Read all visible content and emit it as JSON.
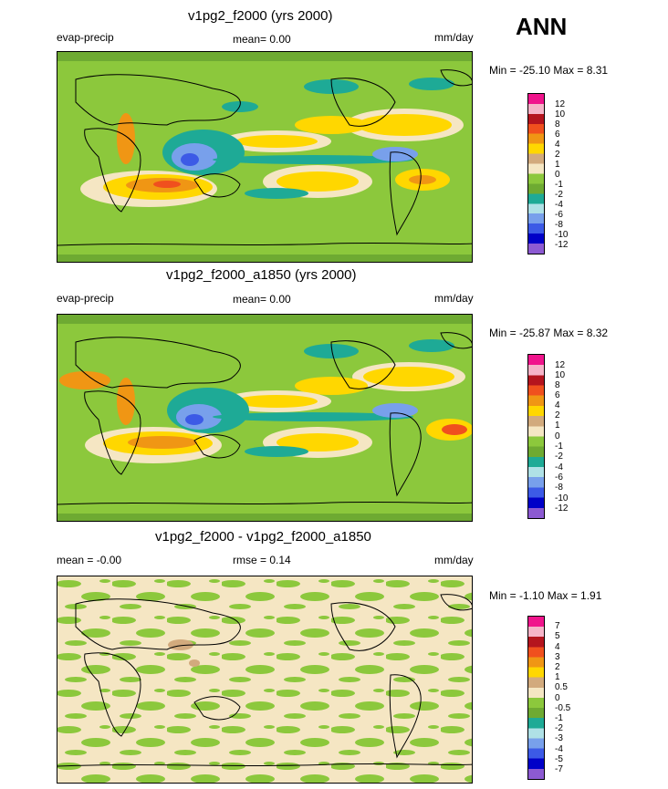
{
  "header": {
    "season": "ANN"
  },
  "panels": [
    {
      "title": "v1pg2_f2000 (yrs 2000)",
      "left_label": "evap-precip",
      "mid_label": "mean=  0.00",
      "units": "mm/day",
      "range": "Min = -25.10 Max =   8.31",
      "colorbar": {
        "ticks": [
          "12",
          "10",
          "8",
          "6",
          "4",
          "2",
          "1",
          "0",
          "-1",
          "-2",
          "-4",
          "-6",
          "-8",
          "-10",
          "-12"
        ],
        "colors": [
          "#f0148c",
          "#f5b4c8",
          "#b4141e",
          "#f0501e",
          "#f09614",
          "#ffd700",
          "#d2aa7d",
          "#f5e6c3",
          "#8cc83c",
          "#6eaa32",
          "#1eaa96",
          "#afe1e6",
          "#78a0eb",
          "#3c5ae6",
          "#0000c8",
          "#8c5ad2"
        ]
      }
    },
    {
      "title": "v1pg2_f2000_a1850 (yrs 2000)",
      "left_label": "evap-precip",
      "mid_label": "mean=  0.00",
      "units": "mm/day",
      "range": "Min = -25.87 Max =   8.32",
      "colorbar": {
        "ticks": [
          "12",
          "10",
          "8",
          "6",
          "4",
          "2",
          "1",
          "0",
          "-1",
          "-2",
          "-4",
          "-6",
          "-8",
          "-10",
          "-12"
        ],
        "colors": [
          "#f0148c",
          "#f5b4c8",
          "#b4141e",
          "#f0501e",
          "#f09614",
          "#ffd700",
          "#d2aa7d",
          "#f5e6c3",
          "#8cc83c",
          "#6eaa32",
          "#1eaa96",
          "#afe1e6",
          "#78a0eb",
          "#3c5ae6",
          "#0000c8",
          "#8c5ad2"
        ]
      }
    },
    {
      "title": "v1pg2_f2000 - v1pg2_f2000_a1850",
      "left_label": "mean =  -0.00",
      "mid_label": "rmse =  0.14",
      "units": "mm/day",
      "range": "Min =  -1.10 Max =   1.91",
      "colorbar": {
        "ticks": [
          "7",
          "5",
          "4",
          "3",
          "2",
          "1",
          "0.5",
          "0",
          "-0.5",
          "-1",
          "-2",
          "-3",
          "-4",
          "-5",
          "-7"
        ],
        "colors": [
          "#f0148c",
          "#f5b4c8",
          "#b4141e",
          "#f0501e",
          "#f09614",
          "#ffd700",
          "#d2aa7d",
          "#f5e6c3",
          "#8cc83c",
          "#6eaa32",
          "#1eaa96",
          "#afe1e6",
          "#78a0eb",
          "#3c5ae6",
          "#0000c8",
          "#8c5ad2"
        ]
      }
    }
  ]
}
